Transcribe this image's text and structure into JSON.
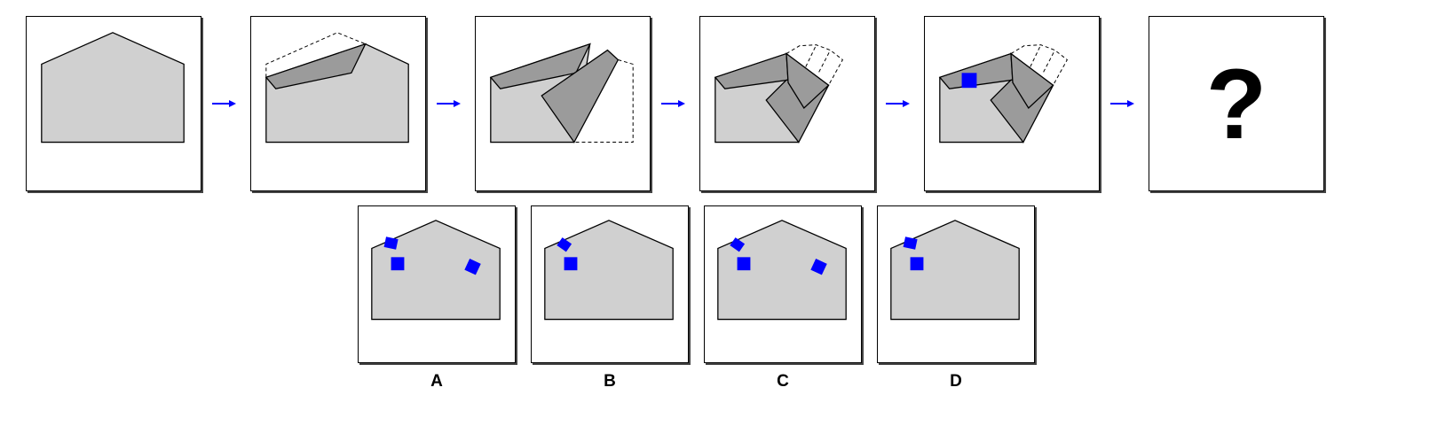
{
  "question_mark": "?",
  "options": [
    {
      "label": "A"
    },
    {
      "label": "B"
    },
    {
      "label": "C"
    },
    {
      "label": "D"
    }
  ],
  "colors": {
    "paper": "#d0d0d0",
    "fold": "#9b9b9b",
    "hole": "#0000ff",
    "arrow": "#0000ff"
  }
}
